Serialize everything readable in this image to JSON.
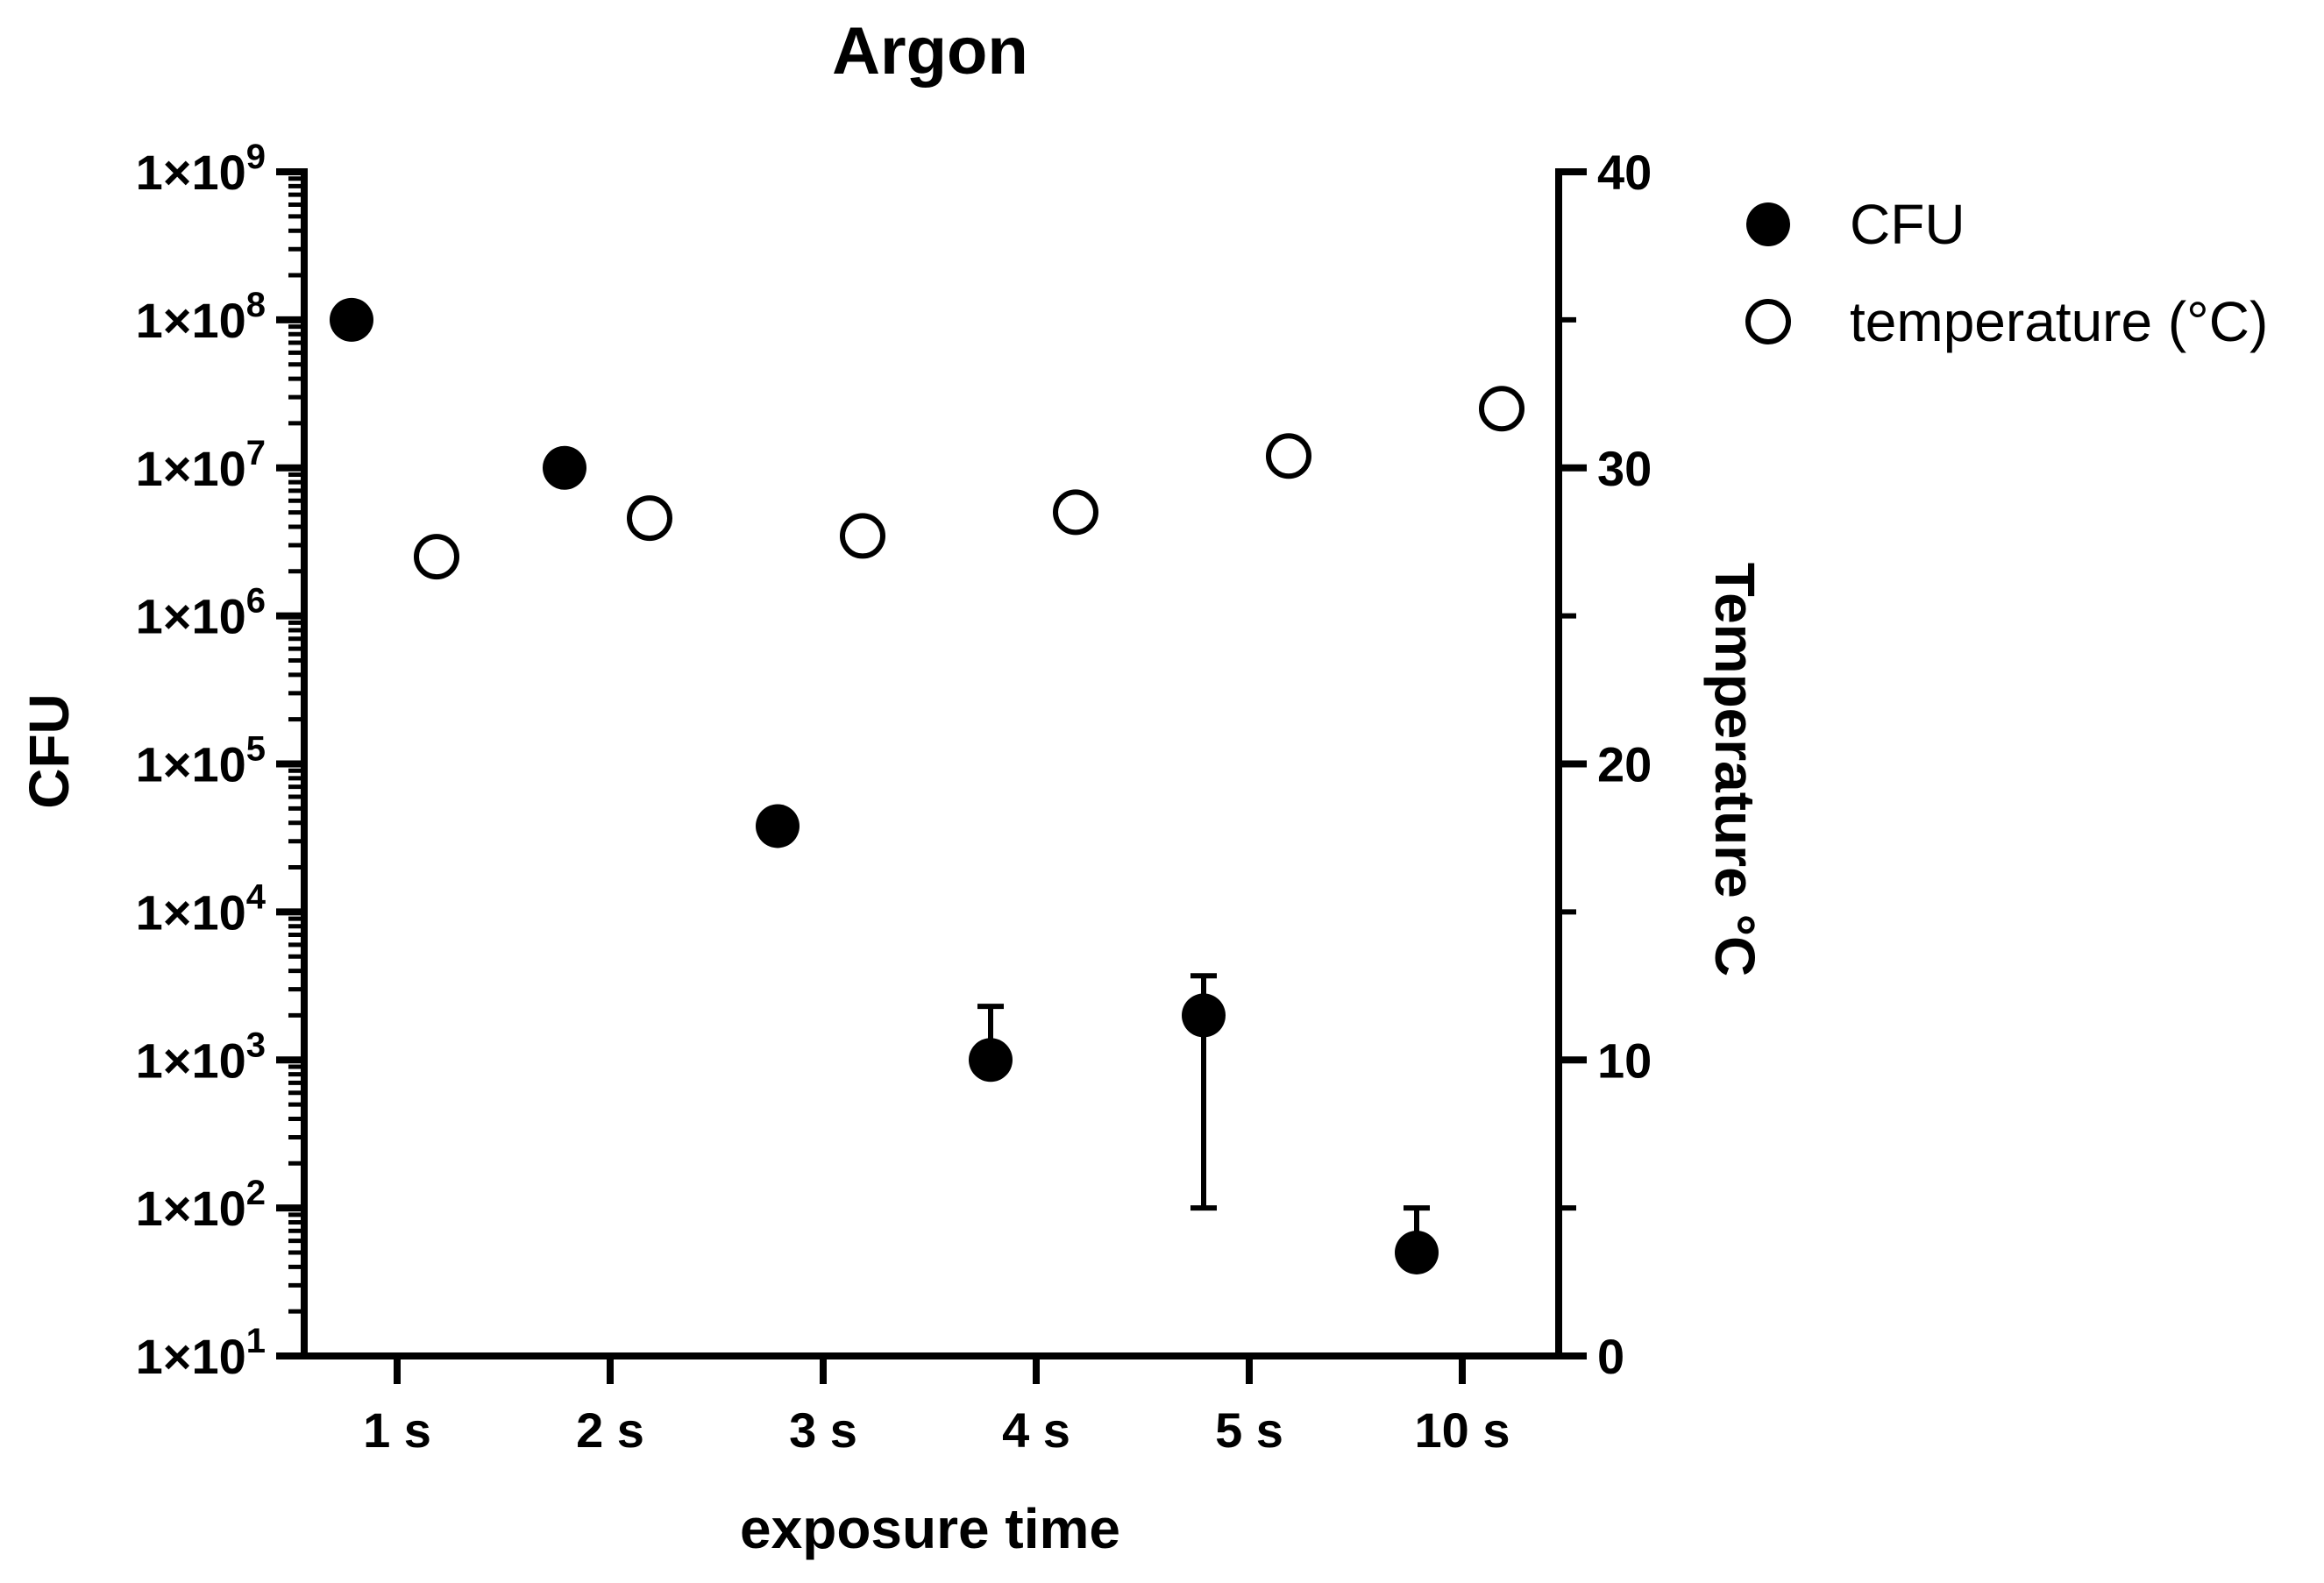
{
  "chart_data": {
    "type": "scatter",
    "title": "Argon",
    "xlabel": "exposure time",
    "ylabel": "CFU",
    "y2label": "Temperature °C",
    "categories": [
      "1 s",
      "2 s",
      "3 s",
      "4 s",
      "5 s",
      "10 s"
    ],
    "y_scale": "log",
    "ylim": [
      10,
      1000000000
    ],
    "y_ticks": [
      {
        "value": 10,
        "mantissa": "1×10",
        "exp": "1"
      },
      {
        "value": 100,
        "mantissa": "1×10",
        "exp": "2"
      },
      {
        "value": 1000,
        "mantissa": "1×10",
        "exp": "3"
      },
      {
        "value": 10000,
        "mantissa": "1×10",
        "exp": "4"
      },
      {
        "value": 100000,
        "mantissa": "1×10",
        "exp": "5"
      },
      {
        "value": 1000000,
        "mantissa": "1×10",
        "exp": "6"
      },
      {
        "value": 10000000,
        "mantissa": "1×10",
        "exp": "7"
      },
      {
        "value": 100000000,
        "mantissa": "1×10",
        "exp": "8"
      },
      {
        "value": 1000000000,
        "mantissa": "1×10",
        "exp": "9"
      }
    ],
    "y2lim": [
      0,
      40
    ],
    "y2_ticks": [
      0,
      10,
      20,
      30,
      40
    ],
    "y2_minor_ticks": [
      5,
      15,
      25,
      35
    ],
    "series": [
      {
        "name": "CFU",
        "axis": "left",
        "marker": "filled-circle",
        "values": [
          100000000,
          10000000,
          38000,
          1000,
          2000,
          50
        ],
        "error_upper": [
          null,
          null,
          null,
          2300,
          3700,
          100
        ],
        "error_lower": [
          null,
          null,
          null,
          null,
          100,
          null
        ]
      },
      {
        "name": "temperature (°C)",
        "axis": "right",
        "marker": "open-circle",
        "values": [
          27.0,
          28.3,
          27.7,
          28.5,
          30.4,
          32.0
        ]
      }
    ],
    "legend": {
      "position": "top-right",
      "entries": [
        "CFU",
        "temperature (°C)"
      ]
    }
  }
}
